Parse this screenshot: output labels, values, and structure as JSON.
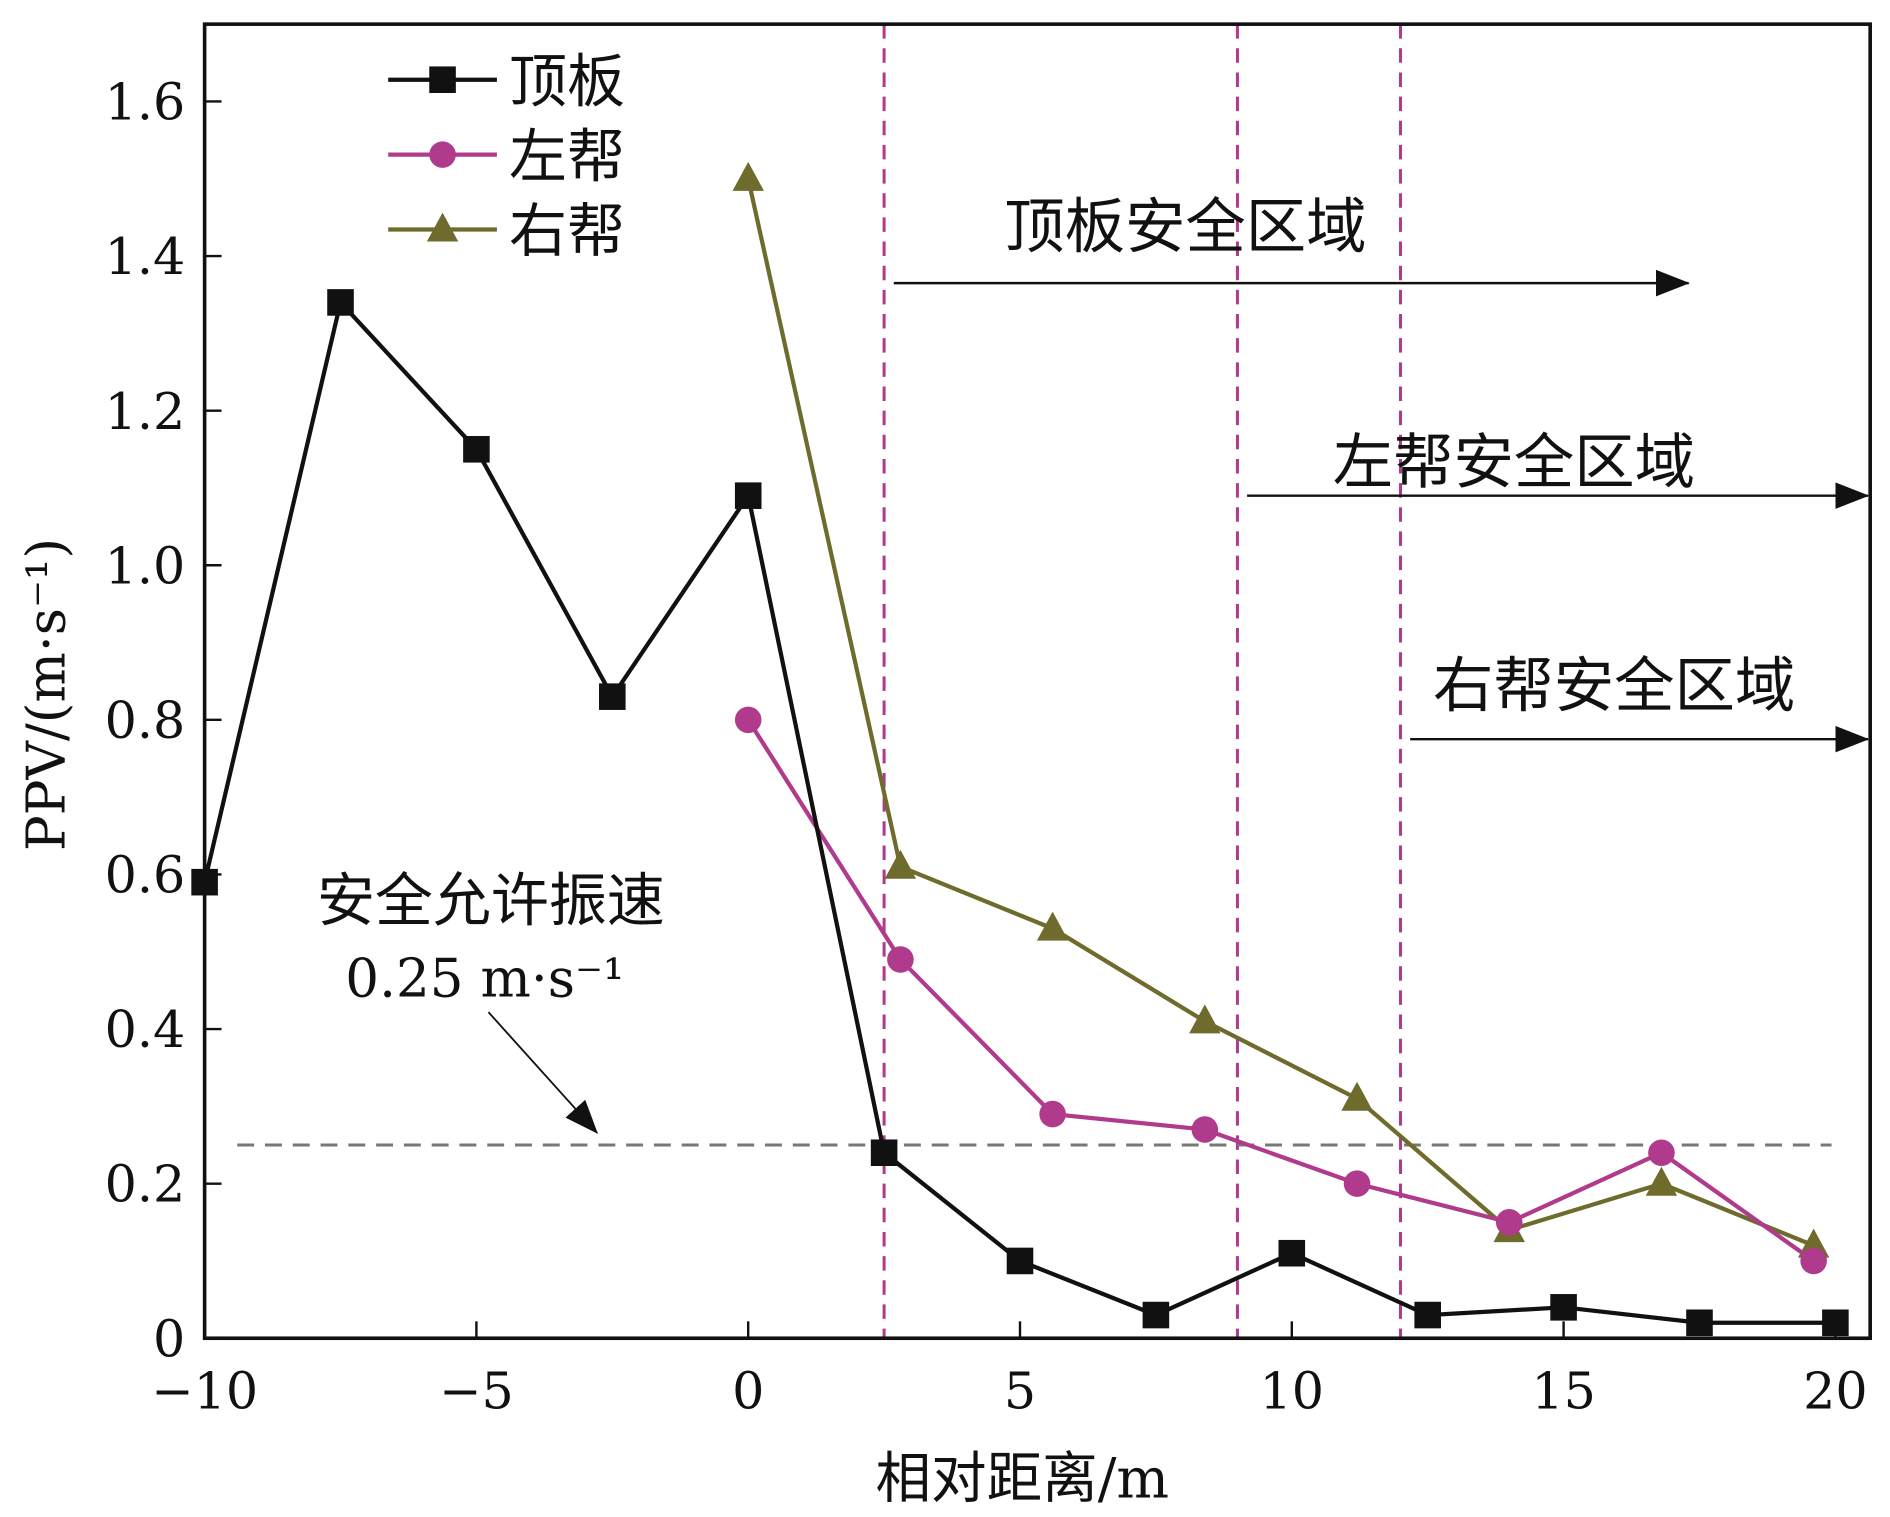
{
  "chart_data": {
    "type": "line",
    "title": "",
    "xlabel": "相对距离/m",
    "ylabel": "PPV/(m·s⁻¹)",
    "xlim": [
      -10,
      20.64
    ],
    "ylim": [
      0,
      1.7
    ],
    "xticks": [
      -10,
      -5,
      0,
      5,
      10,
      15,
      20
    ],
    "xtick_labels": [
      "−10",
      "−5",
      "0",
      "5",
      "10",
      "15",
      "20"
    ],
    "yticks": [
      0,
      0.2,
      0.4,
      0.6,
      0.8,
      1.0,
      1.2,
      1.4,
      1.6
    ],
    "ytick_labels": [
      "0",
      "0.2",
      "0.4",
      "0.6",
      "0.8",
      "1.0",
      "1.2",
      "1.4",
      "1.6"
    ],
    "legend_position": "top-left",
    "series": [
      {
        "name": "顶板",
        "color": "#111111",
        "marker": "square",
        "x": [
          -10,
          -7.5,
          -5,
          -2.5,
          0,
          2.5,
          5,
          7.5,
          10,
          12.5,
          15,
          17.5,
          20
        ],
        "y": [
          0.59,
          1.34,
          1.15,
          0.83,
          1.09,
          0.24,
          0.1,
          0.03,
          0.11,
          0.03,
          0.04,
          0.02,
          0.02
        ]
      },
      {
        "name": "左帮",
        "color": "#b03a8c",
        "marker": "circle",
        "x": [
          0,
          2.8,
          5.6,
          8.4,
          11.2,
          14,
          16.8,
          19.6
        ],
        "y": [
          0.8,
          0.49,
          0.29,
          0.27,
          0.2,
          0.15,
          0.24,
          0.1
        ]
      },
      {
        "name": "右帮",
        "color": "#6e6b2c",
        "marker": "triangle",
        "x": [
          0,
          2.8,
          5.6,
          8.4,
          11.2,
          14,
          16.8,
          19.6
        ],
        "y": [
          1.5,
          0.61,
          0.53,
          0.41,
          0.31,
          0.14,
          0.2,
          0.12
        ]
      }
    ],
    "vertical_lines": [
      2.5,
      9,
      12
    ],
    "vline_color": "#b03a8c",
    "threshold": {
      "value": 0.25,
      "label": "安全允许振速",
      "value_label": "0.25 m·s⁻¹",
      "color": "#777777"
    },
    "zones": [
      {
        "label": "顶板安全区域",
        "x_start": 2.5,
        "x_end": 17.3,
        "y": 1.365
      },
      {
        "label": "左帮安全区域",
        "x_start": 9,
        "x_end": 20.6,
        "y": 1.09
      },
      {
        "label": "右帮安全区域",
        "x_start": 12,
        "x_end": 20.6,
        "y": 0.775
      }
    ]
  }
}
